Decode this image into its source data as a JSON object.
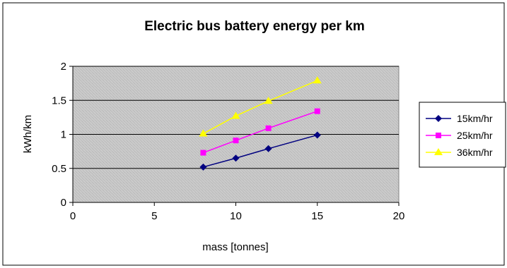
{
  "chart_data": {
    "type": "line",
    "title": "Electric bus battery energy per km",
    "xlabel": "mass [tonnes]",
    "ylabel": "kWh/km",
    "xlim": [
      0,
      20
    ],
    "ylim": [
      0,
      2
    ],
    "xticks": [
      0,
      5,
      10,
      15,
      20
    ],
    "yticks": [
      0,
      0.5,
      1,
      1.5,
      2
    ],
    "xtick_labels": [
      "0",
      "5",
      "10",
      "15",
      "20"
    ],
    "ytick_labels": [
      "0",
      "0.5",
      "1",
      "1.5",
      "2"
    ],
    "grid": "horizontal",
    "legend": "right",
    "plot_background": "#c0c0c0",
    "series": [
      {
        "name": "15km/hr",
        "color": "#000080",
        "marker": "diamond",
        "x": [
          8,
          10,
          12,
          15
        ],
        "y": [
          0.52,
          0.65,
          0.79,
          0.99
        ]
      },
      {
        "name": "25km/hr",
        "color": "#ff00ff",
        "marker": "square",
        "x": [
          8,
          10,
          12,
          15
        ],
        "y": [
          0.73,
          0.91,
          1.09,
          1.34
        ]
      },
      {
        "name": "36km/hr",
        "color": "#ffff00",
        "marker": "triangle",
        "x": [
          8,
          10,
          12,
          15
        ],
        "y": [
          1.01,
          1.27,
          1.49,
          1.79
        ]
      }
    ]
  }
}
